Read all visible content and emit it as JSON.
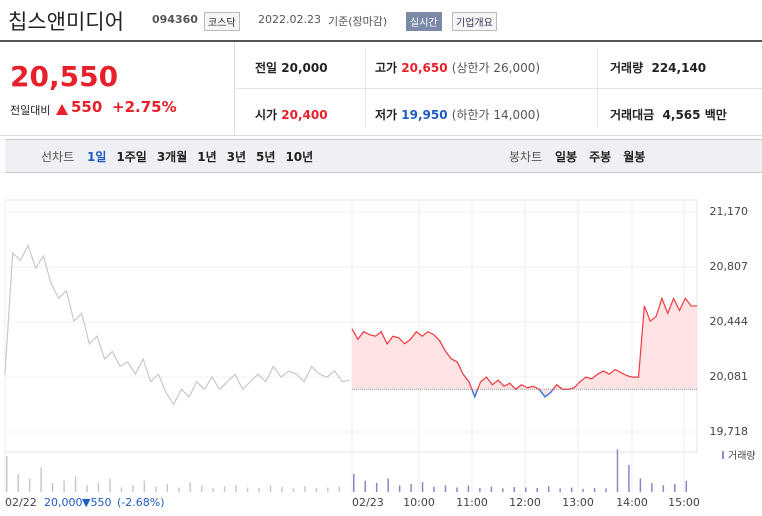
{
  "header": {
    "name": "칩스앤미디어",
    "code": "094360",
    "market": "코스닥",
    "date": "2022.02.23",
    "basis": "기준(장마감)",
    "badge": "실시간",
    "button": "기업개요"
  },
  "price": {
    "current": "20,550",
    "change_label": "전일대비",
    "change": "550",
    "rate": "+2.75%"
  },
  "stats": [
    {
      "label": "전일",
      "value": "20,000"
    },
    {
      "label": "고가",
      "value": "20,650",
      "note": "(상한가 26,000)"
    },
    {
      "label": "거래량",
      "value": "224,140"
    },
    {
      "label": "시가",
      "value": "20,400"
    },
    {
      "label": "저가",
      "value": "19,950",
      "note": "(하한가 14,000)"
    },
    {
      "label": "거래대금",
      "value": "4,565",
      "note": "백만"
    }
  ],
  "tabs": {
    "line_label": "선차트",
    "periods": [
      "1일",
      "1주일",
      "3개월",
      "1년",
      "3년",
      "5년",
      "10년"
    ],
    "candle_label": "봉차트",
    "candles": [
      "일봉",
      "주봉",
      "월봉"
    ]
  },
  "chart": {
    "ylim": [
      19718,
      21170
    ],
    "yticks": [
      {
        "value": 21170,
        "label": "21,170"
      },
      {
        "value": 20807,
        "label": "20,807"
      },
      {
        "value": 20444,
        "label": "20,444"
      },
      {
        "value": 20081,
        "label": "20,081"
      },
      {
        "value": 19718,
        "label": "19,718"
      }
    ],
    "base": 20000,
    "xlabels": [
      "02/22",
      "02/23",
      "10:00",
      "11:00",
      "12:00",
      "13:00",
      "14:00",
      "15:00"
    ],
    "previous": [
      20100,
      20900,
      20850,
      20950,
      20800,
      20880,
      20700,
      20600,
      20650,
      20450,
      20500,
      20300,
      20350,
      20200,
      20250,
      20150,
      20180,
      20100,
      20200,
      20050,
      20100,
      19980,
      19900,
      20000,
      19950,
      20050,
      20000,
      20080,
      20000,
      20050,
      20100,
      20000,
      20050,
      20100,
      20050,
      20150,
      20080,
      20120,
      20100,
      20050,
      20150,
      20100,
      20080,
      20120,
      20050,
      20060
    ],
    "today": [
      20400,
      20330,
      20380,
      20360,
      20350,
      20380,
      20300,
      20350,
      20340,
      20300,
      20330,
      20380,
      20350,
      20380,
      20360,
      20320,
      20250,
      20200,
      20180,
      20100,
      20050,
      19950,
      20050,
      20080,
      20030,
      20060,
      20020,
      20040,
      20000,
      20030,
      20010,
      20020,
      20000,
      19950,
      19980,
      20030,
      20000,
      20000,
      20010,
      20050,
      20080,
      20070,
      20100,
      20120,
      20100,
      20130,
      20110,
      20090,
      20080,
      20080,
      20550,
      20450,
      20480,
      20600,
      20500,
      20600,
      20520,
      20600,
      20550,
      20550
    ],
    "volume_name": "거래량",
    "volume_ylim": [
      0,
      100
    ],
    "volume_previous": [
      80,
      40,
      30,
      55,
      20,
      25,
      35,
      15,
      20,
      30,
      10,
      15,
      25,
      12,
      18,
      10,
      22,
      14,
      8,
      12,
      16,
      10,
      9,
      14,
      11,
      8,
      13,
      9,
      10,
      12
    ],
    "volume_today": [
      40,
      25,
      20,
      30,
      15,
      18,
      22,
      12,
      15,
      10,
      14,
      9,
      12,
      8,
      11,
      10,
      9,
      13,
      8,
      10,
      7,
      9,
      8,
      95,
      60,
      30,
      20,
      15,
      18,
      25
    ]
  },
  "footer": {
    "date": "02/22",
    "price": "20,000",
    "change": "▼550",
    "rate": "(-2.68%)"
  }
}
